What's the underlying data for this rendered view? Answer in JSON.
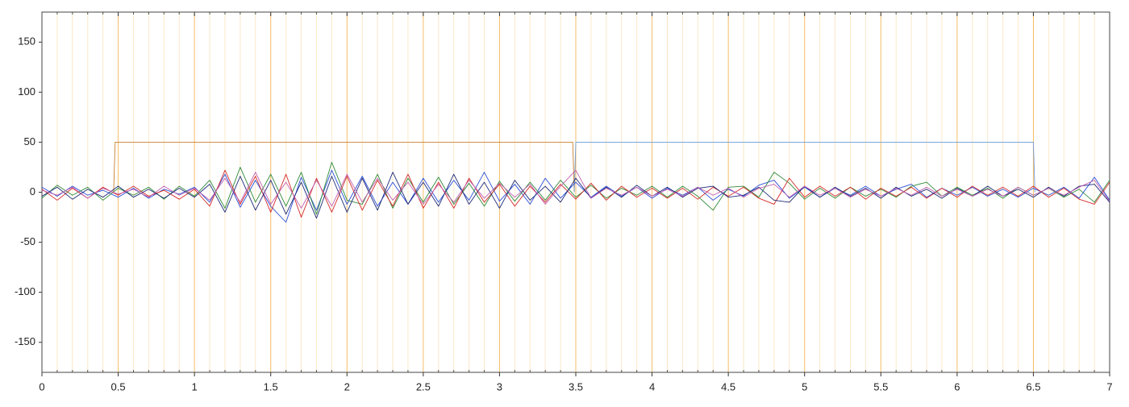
{
  "chart_data": {
    "type": "line",
    "xlim": [
      0,
      7
    ],
    "ylim": [
      -180,
      180
    ],
    "xticks": [
      0,
      0.5,
      1,
      1.5,
      2,
      2.5,
      3,
      3.5,
      4,
      4.5,
      5,
      5.5,
      6,
      6.5,
      7
    ],
    "yticks": [
      -150,
      -100,
      -50,
      0,
      50,
      100,
      150
    ],
    "grid": true,
    "grid_color": "#f3b24a",
    "x": [
      0,
      0.1,
      0.2,
      0.3,
      0.4,
      0.5,
      0.6,
      0.7,
      0.8,
      0.9,
      1,
      1.1,
      1.2,
      1.3,
      1.4,
      1.5,
      1.6,
      1.7,
      1.8,
      1.9,
      2,
      2.1,
      2.2,
      2.3,
      2.4,
      2.5,
      2.6,
      2.7,
      2.8,
      2.9,
      3,
      3.1,
      3.2,
      3.3,
      3.4,
      3.5,
      3.6,
      3.7,
      3.8,
      3.9,
      4,
      4.1,
      4.2,
      4.3,
      4.4,
      4.5,
      4.6,
      4.7,
      4.8,
      4.9,
      5,
      5.1,
      5.2,
      5.3,
      5.4,
      5.5,
      5.6,
      5.7,
      5.8,
      5.9,
      6,
      6.1,
      6.2,
      6.3,
      6.4,
      6.5,
      6.6,
      6.7,
      6.8,
      6.9,
      7
    ],
    "series": [
      {
        "color": "#c8802f",
        "x": [
          0.47,
          0.48,
          3.48,
          3.49
        ],
        "values": [
          0,
          50,
          50,
          0
        ]
      },
      {
        "color": "#6d9ad6",
        "x": [
          3.49,
          3.5,
          6.5,
          6.51
        ],
        "values": [
          0,
          50,
          50,
          0
        ]
      },
      {
        "color": "#2a4fd8",
        "values": [
          5,
          -4,
          6,
          -3,
          2,
          -5,
          4,
          -6,
          3,
          -2,
          5,
          -10,
          18,
          -15,
          12,
          -14,
          -30,
          15,
          -18,
          22,
          -12,
          16,
          -14,
          10,
          -12,
          14,
          -10,
          12,
          -8,
          20,
          -9,
          8,
          -12,
          14,
          -6,
          10,
          -5,
          6,
          -4,
          5,
          -6,
          4,
          -3,
          5,
          -8,
          3,
          -4,
          7,
          12,
          -6,
          5,
          -5,
          4,
          -3,
          6,
          -4,
          3,
          8,
          -5,
          4,
          -3,
          5,
          -4,
          3,
          -5,
          4,
          -3,
          5,
          -6,
          15,
          -8
        ]
      },
      {
        "color": "#2e8b3a",
        "values": [
          -6,
          7,
          -3,
          5,
          -8,
          4,
          -3,
          5,
          -7,
          6,
          -4,
          12,
          -16,
          25,
          -10,
          18,
          -14,
          20,
          -22,
          30,
          -8,
          -12,
          18,
          -16,
          14,
          -10,
          15,
          -12,
          9,
          -14,
          11,
          -9,
          10,
          -8,
          12,
          -5,
          7,
          -6,
          4,
          -3,
          6,
          -5,
          6,
          -4,
          -18,
          5,
          6,
          -5,
          20,
          9,
          -7,
          4,
          -6,
          5,
          -4,
          3,
          -5,
          6,
          10,
          -4,
          5,
          -3,
          4,
          -6,
          5,
          -3,
          4,
          -5,
          3,
          -10,
          12
        ]
      },
      {
        "color": "#d42a2a",
        "values": [
          3,
          -8,
          4,
          -6,
          5,
          -3,
          6,
          -4,
          2,
          -7,
          3,
          -14,
          22,
          -12,
          16,
          -20,
          18,
          -25,
          14,
          -20,
          16,
          -18,
          12,
          -14,
          18,
          -16,
          10,
          -16,
          14,
          -10,
          8,
          -14,
          6,
          -10,
          8,
          -7,
          9,
          -8,
          6,
          -5,
          4,
          -6,
          4,
          -7,
          5,
          -4,
          5,
          -6,
          -12,
          14,
          -5,
          6,
          -4,
          5,
          -7,
          4,
          -4,
          5,
          -6,
          4,
          -5,
          6,
          -3,
          5,
          -4,
          6,
          -5,
          4,
          -7,
          -12,
          10
        ]
      },
      {
        "color": "#1c2a78",
        "values": [
          -4,
          5,
          -7,
          3,
          -5,
          6,
          -5,
          3,
          -6,
          4,
          -5,
          8,
          -20,
          16,
          -18,
          12,
          -22,
          10,
          -26,
          16,
          -20,
          14,
          -18,
          20,
          -12,
          10,
          -14,
          18,
          -12,
          10,
          -16,
          12,
          -8,
          6,
          -10,
          14,
          -6,
          5,
          -5,
          7,
          -4,
          5,
          -5,
          4,
          6,
          -5,
          -3,
          5,
          -8,
          -10,
          6,
          -5,
          5,
          -4,
          4,
          -6,
          5,
          -4,
          3,
          -6,
          4,
          -4,
          6,
          -4,
          3,
          -5,
          5,
          -4,
          6,
          8,
          -10
        ]
      },
      {
        "color": "#c15fb0",
        "values": [
          2,
          -3,
          5,
          -6,
          4,
          -2,
          3,
          -5,
          6,
          -3,
          4,
          -8,
          14,
          -10,
          20,
          -12,
          10,
          -16,
          12,
          -14,
          18,
          -10,
          14,
          -8,
          10,
          -12,
          8,
          -10,
          12,
          -6,
          9,
          -5,
          8,
          -12,
          6,
          22,
          -6,
          4,
          -3,
          5,
          -4,
          3,
          -4,
          5,
          -3,
          4,
          -5,
          4,
          8,
          -5,
          6,
          -3,
          4,
          -5,
          3,
          -4,
          4,
          -3,
          5,
          -4,
          3,
          -4,
          3,
          -4,
          5,
          -3,
          4,
          -3,
          5,
          12,
          -9
        ]
      }
    ]
  }
}
